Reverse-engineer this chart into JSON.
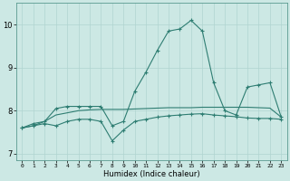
{
  "xlabel": "Humidex (Indice chaleur)",
  "x_values": [
    0,
    1,
    2,
    3,
    4,
    5,
    6,
    7,
    8,
    9,
    10,
    11,
    12,
    13,
    14,
    15,
    16,
    17,
    18,
    19,
    20,
    21,
    22,
    23
  ],
  "line1": [
    7.6,
    7.7,
    7.75,
    8.05,
    8.1,
    8.1,
    8.1,
    8.1,
    7.65,
    7.75,
    8.45,
    8.9,
    9.4,
    9.85,
    9.9,
    10.1,
    9.85,
    8.65,
    8.0,
    7.9,
    8.55,
    8.6,
    8.65,
    7.85
  ],
  "line2": [
    7.6,
    7.65,
    7.7,
    7.65,
    7.75,
    7.8,
    7.8,
    7.75,
    7.3,
    7.55,
    7.75,
    7.8,
    7.85,
    7.88,
    7.9,
    7.92,
    7.93,
    7.9,
    7.88,
    7.86,
    7.83,
    7.82,
    7.82,
    7.8
  ],
  "line3": [
    7.6,
    7.65,
    7.75,
    7.9,
    7.95,
    8.0,
    8.02,
    8.03,
    8.03,
    8.03,
    8.04,
    8.05,
    8.06,
    8.07,
    8.07,
    8.07,
    8.08,
    8.08,
    8.08,
    8.08,
    8.08,
    8.07,
    8.06,
    7.85
  ],
  "line_color": "#2e7d72",
  "bg_color": "#cce8e4",
  "grid_color": "#b0d4d0",
  "ylim": [
    6.85,
    10.5
  ],
  "yticks": [
    7,
    8,
    9,
    10
  ],
  "xlim": [
    -0.5,
    23.5
  ]
}
